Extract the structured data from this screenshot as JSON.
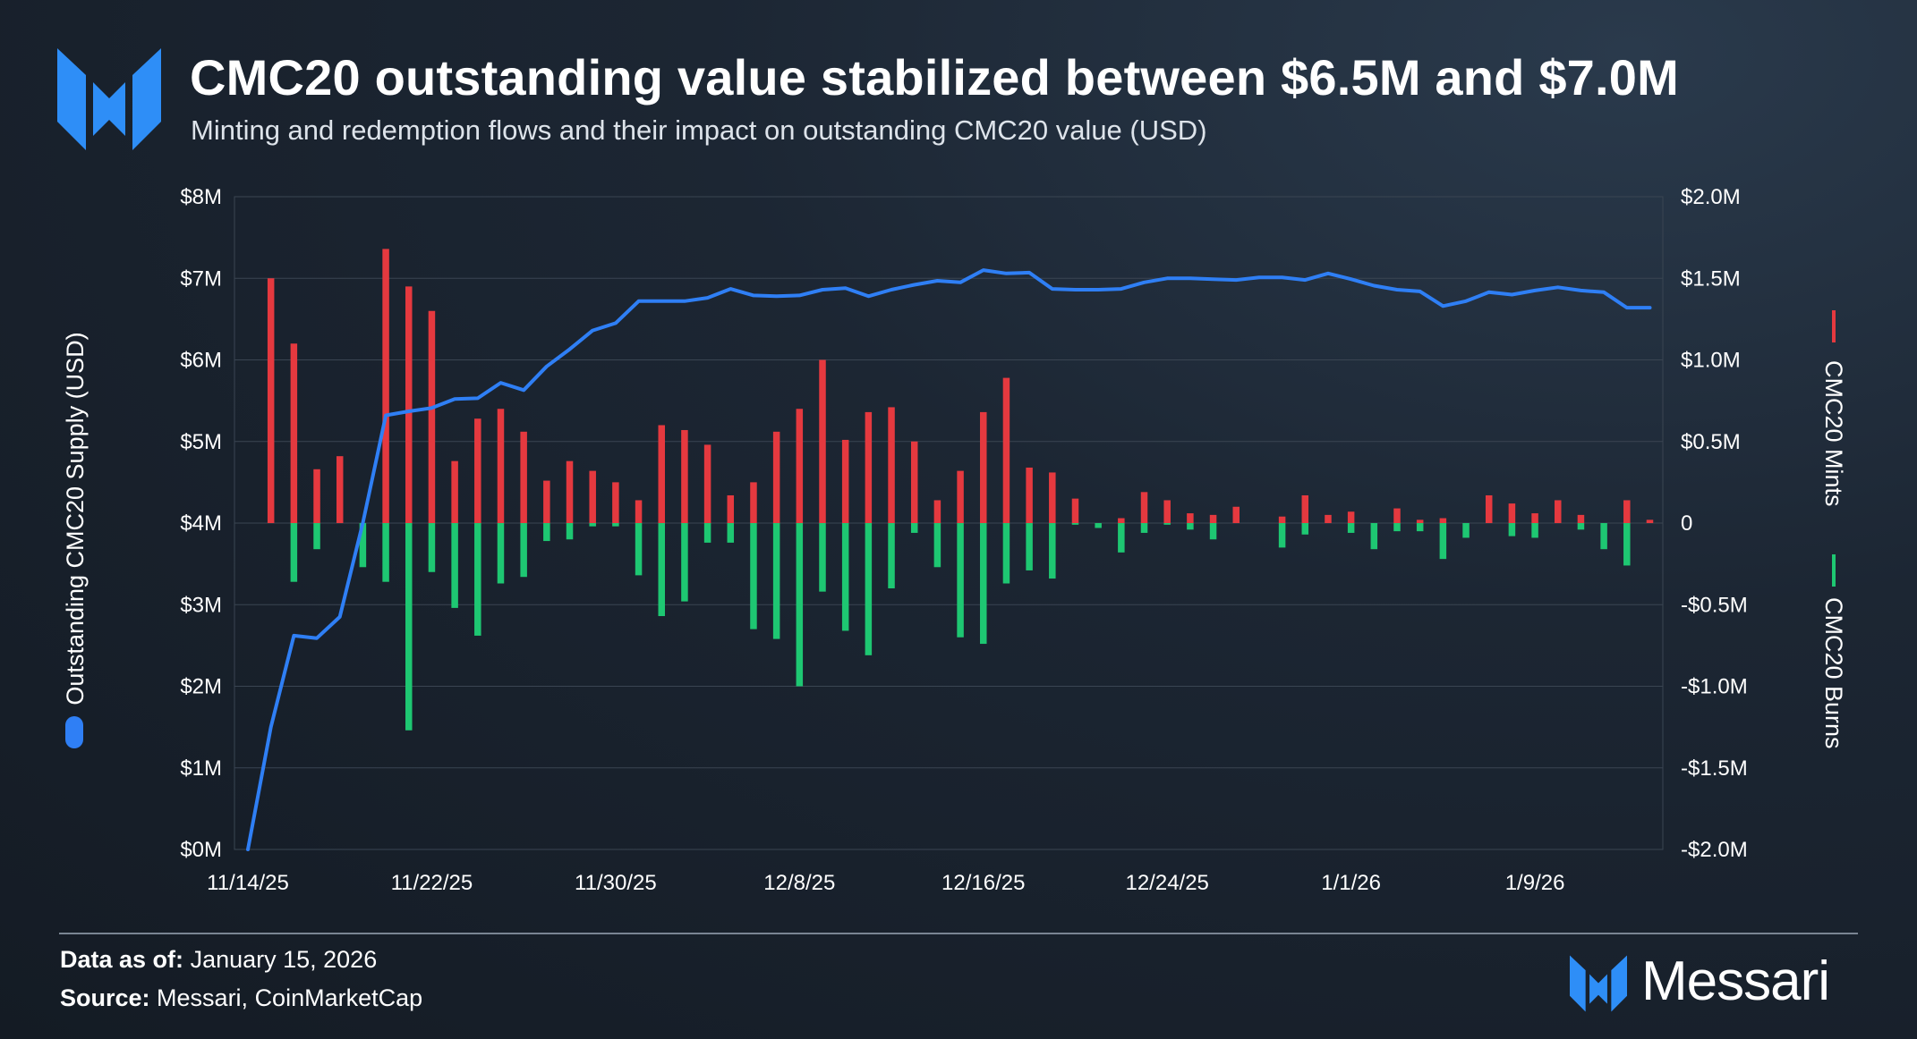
{
  "header": {
    "title": "CMC20 outstanding value stabilized between $6.5M and $7.0M",
    "subtitle": "Minting and redemption flows and their impact on outstanding CMC20 value (USD)"
  },
  "footer": {
    "data_as_of_label": "Data as of:",
    "data_as_of_value": "January 15, 2026",
    "source_label": "Source:",
    "source_value": "Messari, CoinMarketCap",
    "brand_name": "Messari"
  },
  "colors": {
    "supply_line": "#2f7ff5",
    "mints": "#e5393f",
    "burns": "#1ec772",
    "logo": "#2e8ef7",
    "grid": "#3a4552"
  },
  "chart_data": {
    "type": "bar+line",
    "x_ticks": [
      "11/14/25",
      "11/22/25",
      "11/30/25",
      "12/8/25",
      "12/16/25",
      "12/24/25",
      "1/1/26",
      "1/9/26"
    ],
    "x_start_date": "2025-11-14",
    "left_axis": {
      "label": "Outstanding CMC20 Supply (USD)",
      "ticks": [
        "$0M",
        "$1M",
        "$2M",
        "$3M",
        "$4M",
        "$5M",
        "$6M",
        "$7M",
        "$8M"
      ],
      "range": [
        0,
        8000000
      ]
    },
    "right_axis": {
      "ticks": [
        "-$2.0M",
        "-$1.5M",
        "-$1.0M",
        "-$0.5M",
        "0",
        "$0.5M",
        "$1.0M",
        "$1.5M",
        "$2.0M"
      ],
      "range": [
        -2000000,
        2000000
      ]
    },
    "legend": [
      {
        "name": "CMC20 Mints",
        "axis": "right",
        "color": "#e5393f"
      },
      {
        "name": "CMC20 Burns",
        "axis": "right",
        "color": "#1ec772"
      }
    ],
    "supply_series": {
      "name": "Outstanding CMC20 Supply (USD)",
      "values": [
        0,
        1500000,
        2620000,
        2590000,
        2850000,
        4000000,
        5320000,
        5370000,
        5410000,
        5520000,
        5530000,
        5720000,
        5630000,
        5920000,
        6130000,
        6360000,
        6450000,
        6720000,
        6720000,
        6720000,
        6760000,
        6870000,
        6790000,
        6780000,
        6790000,
        6860000,
        6880000,
        6780000,
        6860000,
        6920000,
        6970000,
        6950000,
        7100000,
        7060000,
        7070000,
        6870000,
        6860000,
        6860000,
        6870000,
        6950000,
        7000000,
        7000000,
        6990000,
        6980000,
        7010000,
        7010000,
        6980000,
        7060000,
        6990000,
        6910000,
        6860000,
        6840000,
        6660000,
        6720000,
        6830000,
        6800000,
        6850000,
        6890000,
        6850000,
        6830000,
        6640000,
        6640000
      ]
    },
    "mints": [
      0,
      1500000,
      1100000,
      330000,
      410000,
      0,
      1680000,
      1450000,
      1300000,
      380000,
      640000,
      700000,
      560000,
      260000,
      380000,
      320000,
      250000,
      140000,
      600000,
      570000,
      480000,
      170000,
      250000,
      560000,
      700000,
      1000000,
      510000,
      680000,
      710000,
      500000,
      140000,
      320000,
      680000,
      890000,
      340000,
      310000,
      150000,
      0,
      30000,
      190000,
      140000,
      60000,
      50000,
      100000,
      0,
      40000,
      170000,
      50000,
      70000,
      0,
      90000,
      20000,
      30000,
      0,
      170000,
      120000,
      60000,
      140000,
      50000,
      0,
      140000,
      20000
    ],
    "burns": [
      0,
      0,
      -360000,
      -160000,
      0,
      -270000,
      -360000,
      -1270000,
      -300000,
      -520000,
      -690000,
      -370000,
      -330000,
      -110000,
      -100000,
      -20000,
      -20000,
      -320000,
      -570000,
      -480000,
      -120000,
      -120000,
      -650000,
      -710000,
      -1000000,
      -420000,
      -660000,
      -810000,
      -400000,
      -60000,
      -270000,
      -700000,
      -740000,
      -370000,
      -290000,
      -340000,
      -10000,
      -30000,
      -180000,
      -60000,
      -10000,
      -40000,
      -100000,
      0,
      0,
      -150000,
      -70000,
      0,
      -60000,
      -160000,
      -50000,
      -50000,
      -220000,
      -90000,
      0,
      -80000,
      -90000,
      0,
      -40000,
      -160000,
      -260000,
      0
    ]
  }
}
